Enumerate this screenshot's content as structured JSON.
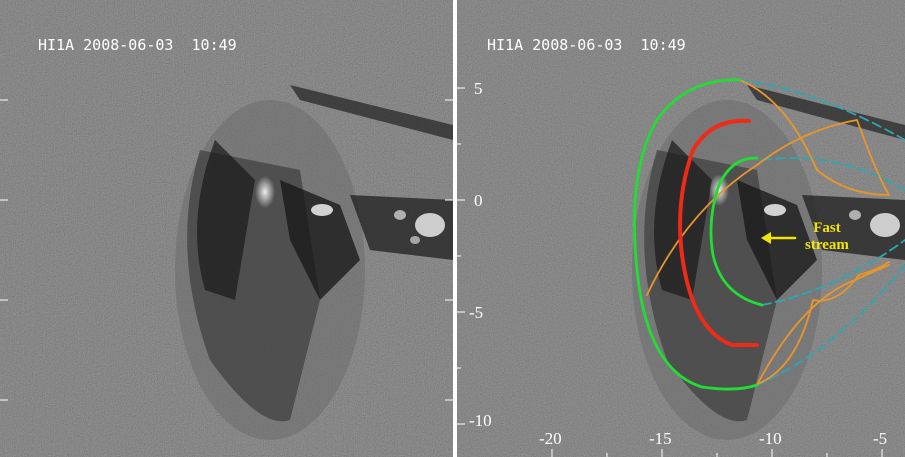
{
  "left_panel": {
    "timestamp": "HI1A 2008-06-03  10:49"
  },
  "right_panel": {
    "timestamp": "HI1A 2008-06-03  10:49",
    "y_ticks": [
      "5",
      "0",
      "-5",
      "-10"
    ],
    "x_ticks": [
      "-20",
      "-15",
      "-10",
      "-5"
    ],
    "annotation": "Fast stream",
    "annotation_lines": [
      "Fast",
      "stream"
    ]
  },
  "colors": {
    "green_front": "#22dd33",
    "red_front": "#ee2a18",
    "orange_front": "#e8962a",
    "cyan_dashed": "#2aa8b4",
    "annotation_text": "#f2e600",
    "arrow": "#f2e600"
  }
}
